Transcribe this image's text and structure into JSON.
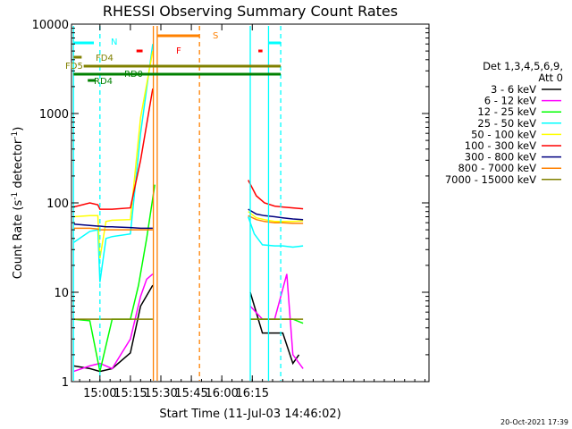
{
  "chart_data": {
    "type": "line",
    "title": "RHESSI Observing Summary Count Rates",
    "xlabel": "Start Time (11-Jul-03 14:46:02)",
    "ylabel": "Count Rate (s⁻¹ detector⁻¹)",
    "ylabel_main": "Count Rate (s",
    "ylabel_sup1": "-1",
    "ylabel_mid": " detector",
    "ylabel_sup2": "-1",
    "ylabel_end": ")",
    "x_range_min": [
      46,
      222
    ],
    "y_range": [
      1,
      10000
    ],
    "y_scale": "log",
    "x_ticks": [
      {
        "label": "15:00",
        "min": 60
      },
      {
        "label": "15:15",
        "min": 75
      },
      {
        "label": "15:30",
        "min": 90
      },
      {
        "label": "15:45",
        "min": 105
      },
      {
        "label": "16:00",
        "min": 120
      },
      {
        "label": "16:15",
        "min": 135
      }
    ],
    "y_ticks": [
      {
        "label": "1",
        "v": 1
      },
      {
        "label": "10",
        "v": 10
      },
      {
        "label": "100",
        "v": 100
      },
      {
        "label": "1000",
        "v": 1000
      },
      {
        "label": "10000",
        "v": 10000
      }
    ],
    "legend": {
      "header1": "Det 1,3,4,5,6,9,",
      "header2": "Att 0",
      "position": "right"
    },
    "series": [
      {
        "name": "3 - 6 keV",
        "color": "#000000",
        "x": [
          47,
          55,
          60,
          66,
          75,
          80,
          86
        ],
        "y": [
          1.5,
          1.4,
          1.3,
          1.4,
          2.1,
          7.0,
          12.0
        ],
        "x2": [
          134,
          140,
          146,
          150,
          155,
          158
        ],
        "y2": [
          10,
          3.5,
          3.5,
          3.5,
          1.6,
          2.0
        ]
      },
      {
        "name": "6 - 12 keV",
        "color": "#ff00ff",
        "x": [
          47,
          55,
          60,
          66,
          75,
          80,
          83,
          86
        ],
        "y": [
          1.3,
          1.5,
          1.6,
          1.4,
          3.0,
          9.0,
          14.0,
          16.0
        ],
        "x2": [
          134,
          140,
          146,
          152,
          155,
          160
        ],
        "y2": [
          7,
          5,
          5,
          16,
          2,
          1.4
        ]
      },
      {
        "name": "12 - 25 keV",
        "color": "#00ff00",
        "x": [
          47,
          55,
          60,
          66,
          75,
          79,
          83,
          87
        ],
        "y": [
          5.0,
          4.8,
          1.3,
          5.0,
          5.0,
          12,
          40,
          160
        ],
        "x2": [
          134,
          140,
          146,
          150,
          155,
          160
        ],
        "y2": [
          5,
          5,
          5,
          5,
          5,
          4.5
        ]
      },
      {
        "name": "25 - 50 keV",
        "color": "#00ffff",
        "x": [
          47,
          55,
          59,
          60,
          63,
          66,
          75,
          80,
          86
        ],
        "y": [
          36,
          48,
          50,
          13,
          40,
          42,
          45,
          600,
          6000
        ],
        "x2": [
          133,
          136,
          140,
          146,
          150,
          155,
          160
        ],
        "y2": [
          70,
          45,
          34,
          33,
          33,
          32,
          33
        ]
      },
      {
        "name": "50 - 100 keV",
        "color": "#ffff00",
        "x": [
          47,
          55,
          59,
          60,
          63,
          66,
          75,
          80,
          86
        ],
        "y": [
          70,
          72,
          72,
          24,
          62,
          64,
          65,
          900,
          5000
        ],
        "x2": [
          133,
          137,
          141,
          146,
          150,
          155,
          160
        ],
        "y2": [
          80,
          68,
          65,
          62,
          62,
          62,
          63
        ]
      },
      {
        "name": "100 - 300 keV",
        "color": "#ff0000",
        "x": [
          47,
          55,
          59,
          60,
          63,
          66,
          75,
          80,
          86
        ],
        "y": [
          90,
          100,
          95,
          85,
          85,
          85,
          88,
          300,
          1900
        ],
        "x2": [
          133,
          137,
          141,
          146,
          150,
          155,
          160
        ],
        "y2": [
          180,
          120,
          100,
          92,
          90,
          88,
          86
        ]
      },
      {
        "name": "300 - 800 keV",
        "color": "#000080",
        "x": [
          47,
          55,
          59,
          60,
          63,
          66,
          75,
          80,
          86
        ],
        "y": [
          58,
          56,
          55,
          55,
          54,
          54,
          53,
          52,
          52
        ],
        "x2": [
          133,
          137,
          141,
          146,
          150,
          155,
          160
        ],
        "y2": [
          85,
          75,
          72,
          70,
          68,
          66,
          65
        ]
      },
      {
        "name": "800 - 7000 keV",
        "color": "#ff8000",
        "x": [
          47,
          55,
          59,
          60,
          63,
          66,
          75,
          80,
          86
        ],
        "y": [
          52,
          52,
          51,
          50,
          50,
          50,
          50,
          50,
          50
        ],
        "x2": [
          133,
          137,
          141,
          146,
          150,
          155,
          160
        ],
        "y2": [
          72,
          65,
          62,
          60,
          60,
          59,
          59
        ]
      },
      {
        "name": "7000 - 15000 keV",
        "color": "#808000",
        "x": [
          47,
          55,
          60,
          66,
          75,
          80,
          86
        ],
        "y": [
          5,
          5,
          5,
          5,
          5,
          5,
          5
        ],
        "x2": [
          134,
          140,
          146,
          150,
          155,
          160
        ],
        "y2": [
          5,
          5,
          5,
          5,
          5,
          5
        ]
      }
    ],
    "annotations": [
      {
        "text": "N",
        "color": "#00ffff"
      },
      {
        "text": "FD4",
        "color": "#808000"
      },
      {
        "text": "FD5",
        "color": "#808000"
      },
      {
        "text": "RD0",
        "color": "#008000"
      },
      {
        "text": "RD4",
        "color": "#008000"
      },
      {
        "text": "F",
        "color": "#ff0000"
      },
      {
        "text": "S",
        "color": "#ff8000"
      }
    ],
    "footer": "20-Oct-2021 17:39"
  }
}
